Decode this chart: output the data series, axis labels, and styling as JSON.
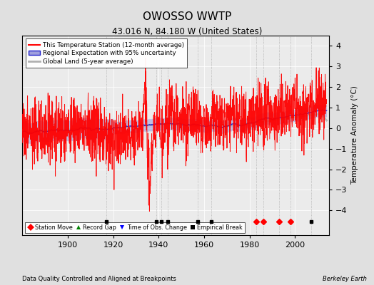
{
  "title": "OWOSSO WWTP",
  "subtitle": "43.016 N, 84.180 W (United States)",
  "xlabel_bottom": "Data Quality Controlled and Aligned at Breakpoints",
  "xlabel_right": "Berkeley Earth",
  "ylabel": "Temperature Anomaly (°C)",
  "xlim": [
    1880,
    2015
  ],
  "ylim": [
    -5.2,
    4.5
  ],
  "yticks": [
    -4,
    -3,
    -2,
    -1,
    0,
    1,
    2,
    3,
    4
  ],
  "xticks": [
    1900,
    1920,
    1940,
    1960,
    1980,
    2000
  ],
  "background_color": "#e0e0e0",
  "plot_bg_color": "#ebebeb",
  "station_color": "red",
  "regional_color": "#2222cc",
  "global_color": "#b0b0b0",
  "uncertainty_color": "#a0a0dd",
  "seed": 12345,
  "start_year": 1880,
  "end_year": 2013,
  "empirical_breaks": [
    1917,
    1939,
    1941,
    1944,
    1957,
    1963,
    2007
  ],
  "station_moves": [
    1983,
    1986,
    1993,
    1998
  ],
  "obs_changes": [],
  "record_gaps": []
}
